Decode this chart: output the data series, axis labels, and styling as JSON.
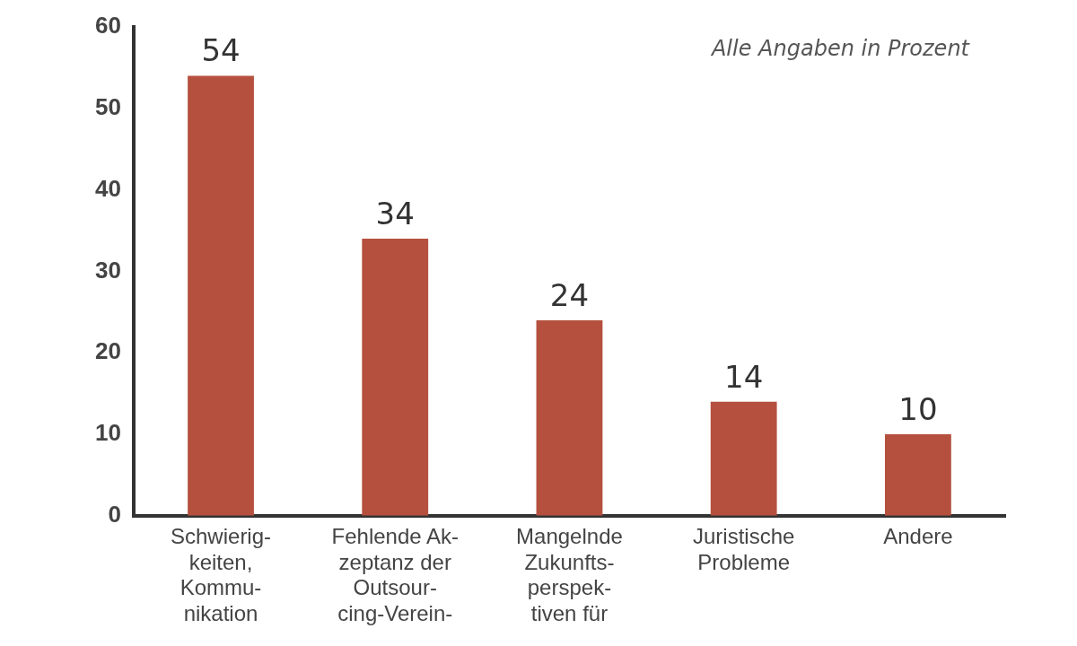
{
  "chart_data": {
    "type": "bar",
    "categories": [
      "Schwierig-\nkeiten,\nKommu-\nnikation",
      "Fehlende Ak-\nzeptanz der\nOutsour-\ncing-Verein-",
      "Mangelnde\nZukunfts-\nperspek-\ntiven für",
      "Juristische\nProbleme",
      "Andere"
    ],
    "values": [
      54,
      34,
      24,
      14,
      10
    ],
    "color": "#b5503f",
    "ylim": [
      0,
      60
    ],
    "yticks": [
      0,
      10,
      20,
      30,
      40,
      50,
      60
    ],
    "grid": false,
    "legend": false,
    "data_labels": true,
    "annotations": [
      "Alle Angaben in Prozent"
    ]
  }
}
